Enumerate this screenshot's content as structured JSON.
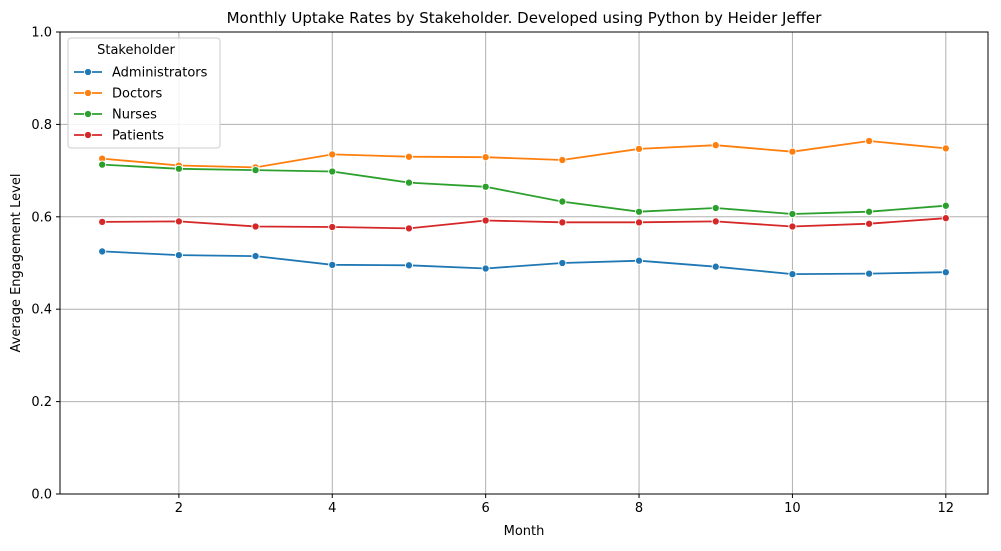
{
  "chart_data": {
    "type": "line",
    "title": "Monthly Uptake Rates by Stakeholder. Developed using Python by Heider Jeffer",
    "xlabel": "Month",
    "ylabel": "Average Engagement Level",
    "xlim": [
      0.45,
      12.55
    ],
    "ylim": [
      0.0,
      1.0
    ],
    "xticks": [
      2,
      4,
      6,
      8,
      10,
      12
    ],
    "yticks": [
      0.0,
      0.2,
      0.4,
      0.6,
      0.8,
      1.0
    ],
    "xtick_labels": [
      "2",
      "4",
      "6",
      "8",
      "10",
      "12"
    ],
    "ytick_labels": [
      "0.0",
      "0.2",
      "0.4",
      "0.6",
      "0.8",
      "1.0"
    ],
    "grid": true,
    "legend": {
      "title": "Stakeholder",
      "placement": "top-left"
    },
    "x": [
      1,
      2,
      3,
      4,
      5,
      6,
      7,
      8,
      9,
      10,
      11,
      12
    ],
    "series": [
      {
        "name": "Administrators",
        "color": "#1f77b4",
        "values": [
          0.525,
          0.517,
          0.515,
          0.496,
          0.495,
          0.488,
          0.5,
          0.505,
          0.492,
          0.476,
          0.477,
          0.48
        ]
      },
      {
        "name": "Doctors",
        "color": "#ff7f0e",
        "values": [
          0.726,
          0.711,
          0.707,
          0.735,
          0.73,
          0.729,
          0.723,
          0.747,
          0.755,
          0.741,
          0.764,
          0.748
        ]
      },
      {
        "name": "Nurses",
        "color": "#2ca02c",
        "values": [
          0.713,
          0.704,
          0.701,
          0.698,
          0.674,
          0.665,
          0.633,
          0.611,
          0.619,
          0.606,
          0.611,
          0.624
        ]
      },
      {
        "name": "Patients",
        "color": "#d62728",
        "values": [
          0.589,
          0.59,
          0.579,
          0.578,
          0.575,
          0.592,
          0.588,
          0.588,
          0.59,
          0.579,
          0.585,
          0.597
        ]
      }
    ]
  }
}
